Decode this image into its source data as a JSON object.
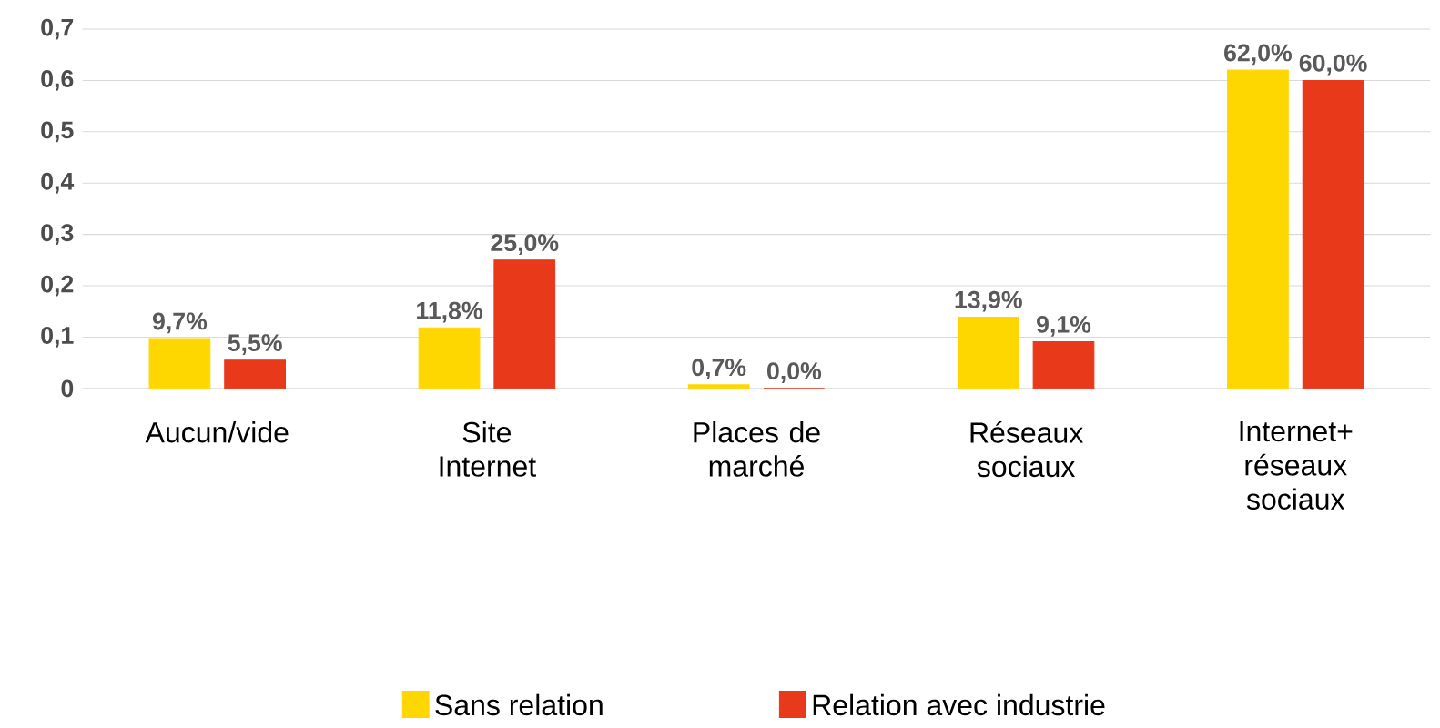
{
  "chart_data": {
    "type": "bar",
    "categories": [
      "Aucun/vide",
      "Site Internet",
      "Places de marché",
      "Réseaux sociaux",
      "Internet+ réseaux sociaux"
    ],
    "series": [
      {
        "name": "Sans relation",
        "color": "#ffd700",
        "values": [
          0.097,
          0.118,
          0.007,
          0.139,
          0.62
        ],
        "value_labels": [
          "9,7%",
          "11,8%",
          "0,7%",
          "13,9%",
          "62,0%"
        ]
      },
      {
        "name": "Relation avec industrie",
        "color": "#e8391a",
        "values": [
          0.055,
          0.25,
          0.0,
          0.091,
          0.6
        ],
        "value_labels": [
          "5,5%",
          "25,0%",
          "0,0%",
          "9,1%",
          "60,0%"
        ]
      }
    ],
    "ylim": [
      0,
      0.7
    ],
    "yticks": [
      0,
      {
        "value": 0.1,
        "label": "0,1"
      },
      {
        "value": 0.2,
        "label": "0,2"
      },
      {
        "value": 0.3,
        "label": "0,3"
      },
      {
        "value": 0.4,
        "label": "0,4"
      },
      {
        "value": 0.5,
        "label": "0,5"
      },
      {
        "value": 0.6,
        "label": "0,6"
      },
      {
        "value": 0.7,
        "label": "0,7"
      }
    ],
    "grid": "y",
    "legend": "bottom"
  }
}
